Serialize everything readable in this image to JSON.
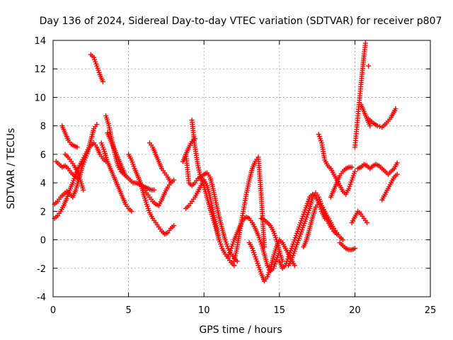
{
  "chart_data": {
    "type": "scatter",
    "title": "Day 136 of 2024, Sidereal Day-to-day VTEC variation (SDTVAR) for receiver p807",
    "xlabel": "GPS time / hours",
    "ylabel": "SDTVAR / TECUs",
    "xlim": [
      0,
      25
    ],
    "ylim": [
      -4,
      14
    ],
    "xticks": [
      0,
      5,
      10,
      15,
      20,
      25
    ],
    "yticks": [
      -4,
      -2,
      0,
      2,
      4,
      6,
      8,
      10,
      12,
      14
    ],
    "grid": true,
    "legend": "none",
    "marker": "plus",
    "color": "#ff0000",
    "series": [
      {
        "x": [
          0.1,
          0.3,
          0.5,
          0.7,
          0.9,
          1.1,
          1.3,
          1.5,
          1.7,
          1.9,
          2.1,
          2.3,
          2.5,
          2.7,
          2.9,
          3.1,
          3.3,
          3.5
        ],
        "y": [
          1.5,
          1.7,
          2.0,
          2.4,
          2.9,
          3.5,
          4.0,
          4.6,
          5.1,
          5.5,
          5.9,
          6.3,
          6.6,
          6.8,
          6.5,
          6.0,
          5.7,
          5.5
        ]
      },
      {
        "x": [
          0.1,
          0.3,
          0.5,
          0.7,
          0.9,
          1.1,
          1.3,
          1.5,
          1.7,
          1.9,
          2.1,
          2.3,
          2.5,
          2.7,
          2.9
        ],
        "y": [
          2.5,
          2.7,
          3.0,
          3.2,
          3.4,
          3.2,
          3.0,
          3.5,
          4.2,
          5.0,
          5.6,
          6.2,
          7.0,
          7.8,
          8.1
        ]
      },
      {
        "x": [
          0.2,
          0.4,
          0.6,
          0.8,
          1.0,
          1.2,
          1.4,
          1.6
        ],
        "y": [
          5.5,
          5.3,
          5.1,
          5.2,
          5.0,
          4.7,
          4.5,
          4.3
        ]
      },
      {
        "x": [
          0.6,
          0.8,
          1.0,
          1.2,
          1.4,
          1.6
        ],
        "y": [
          8.0,
          7.5,
          7.0,
          6.7,
          6.6,
          6.5
        ]
      },
      {
        "x": [
          0.8,
          1.0,
          1.2,
          1.4,
          1.6,
          1.8,
          2.0
        ],
        "y": [
          6.0,
          5.8,
          5.5,
          5.2,
          4.8,
          4.2,
          3.5
        ]
      },
      {
        "x": [
          2.5,
          2.7,
          2.9,
          3.1,
          3.3
        ],
        "y": [
          13.0,
          12.8,
          12.2,
          11.6,
          11.1
        ]
      },
      {
        "x": [
          3.5,
          3.7,
          3.9,
          4.1,
          4.3,
          4.5,
          4.7,
          4.9,
          5.1,
          5.3,
          5.5,
          5.7,
          5.9,
          6.1,
          6.3,
          6.5,
          6.7
        ],
        "y": [
          8.7,
          8.0,
          7.0,
          6.0,
          5.2,
          4.8,
          4.6,
          4.4,
          4.2,
          4.0,
          4.0,
          3.9,
          3.8,
          3.7,
          3.6,
          3.5,
          3.5
        ]
      },
      {
        "x": [
          3.2,
          3.4,
          3.6,
          3.8,
          4.0,
          4.2,
          4.4,
          4.6,
          4.8,
          5.0,
          5.2
        ],
        "y": [
          6.8,
          6.2,
          5.5,
          5.0,
          4.5,
          4.0,
          3.5,
          3.0,
          2.5,
          2.2,
          2.0
        ]
      },
      {
        "x": [
          3.6,
          3.8,
          4.0,
          4.2,
          4.4,
          4.6,
          4.8
        ],
        "y": [
          7.5,
          7.0,
          6.5,
          6.0,
          5.5,
          5.0,
          4.5
        ]
      },
      {
        "x": [
          5.0,
          5.2,
          5.4,
          5.6,
          5.8,
          6.0,
          6.2,
          6.4,
          6.6,
          6.8,
          7.0,
          7.2,
          7.4,
          7.6,
          7.8,
          8.0
        ],
        "y": [
          6.0,
          5.6,
          5.0,
          4.5,
          4.0,
          3.2,
          2.5,
          1.9,
          1.5,
          1.2,
          0.9,
          0.6,
          0.4,
          0.5,
          0.8,
          1.0
        ]
      },
      {
        "x": [
          6.0,
          6.2,
          6.4,
          6.6,
          6.8,
          7.0,
          7.2,
          7.4,
          7.6,
          7.8,
          8.0
        ],
        "y": [
          3.6,
          3.3,
          3.0,
          2.7,
          2.5,
          2.4,
          2.8,
          3.3,
          3.7,
          4.0,
          4.2
        ]
      },
      {
        "x": [
          6.4,
          6.6,
          6.8,
          7.0,
          7.2,
          7.4,
          7.6,
          7.8
        ],
        "y": [
          6.8,
          6.5,
          6.0,
          5.5,
          5.0,
          4.7,
          4.4,
          4.0
        ]
      },
      {
        "x": [
          8.8,
          9.0,
          9.2,
          9.4,
          9.6,
          9.8,
          10.0,
          10.2,
          10.4,
          10.6,
          10.8,
          11.0,
          11.2,
          11.4,
          11.6,
          11.8,
          12.0,
          12.2
        ],
        "y": [
          6.0,
          4.0,
          3.8,
          4.0,
          4.3,
          4.4,
          4.6,
          4.7,
          4.4,
          3.6,
          2.6,
          1.6,
          0.8,
          0.0,
          -0.6,
          -1.0,
          -1.3,
          -1.5
        ]
      },
      {
        "x": [
          8.8,
          9.0,
          9.2,
          9.4,
          9.6,
          9.8,
          10.0,
          10.2,
          10.4,
          10.6,
          10.8,
          11.0
        ],
        "y": [
          2.2,
          2.4,
          2.7,
          3.0,
          3.4,
          3.8,
          4.2,
          3.8,
          3.0,
          2.0,
          1.0,
          0.0
        ]
      },
      {
        "x": [
          8.6,
          8.8,
          9.0,
          9.2,
          9.4
        ],
        "y": [
          5.5,
          6.0,
          6.5,
          6.9,
          7.1
        ]
      },
      {
        "x": [
          9.2,
          9.4,
          9.6,
          9.8,
          10.0,
          10.2,
          10.4,
          10.6,
          10.8,
          11.0,
          11.2,
          11.4,
          11.6,
          11.8,
          12.0
        ],
        "y": [
          8.4,
          6.5,
          5.2,
          4.3,
          3.8,
          3.0,
          2.2,
          1.5,
          0.8,
          0.0,
          -0.6,
          -1.0,
          -1.3,
          -1.6,
          -1.8
        ]
      },
      {
        "x": [
          11.6,
          11.8,
          12.0,
          12.2,
          12.4,
          12.6,
          12.8,
          13.0,
          13.2,
          13.4,
          13.6,
          13.8,
          14.0,
          14.2,
          14.4,
          14.6,
          14.8,
          15.0
        ],
        "y": [
          -1.2,
          -0.6,
          0.0,
          0.5,
          1.0,
          1.4,
          1.6,
          1.5,
          1.2,
          0.8,
          0.3,
          -0.3,
          -1.0,
          -1.8,
          -2.2,
          -2.0,
          -1.4,
          -0.8
        ]
      },
      {
        "x": [
          12.0,
          12.2,
          12.4,
          12.6,
          12.8,
          13.0,
          13.2,
          13.4,
          13.6,
          13.8,
          14.0
        ],
        "y": [
          -1.5,
          -0.5,
          0.8,
          2.0,
          3.2,
          4.2,
          5.0,
          5.5,
          5.8,
          3.0,
          -0.5
        ]
      },
      {
        "x": [
          13.0,
          13.2,
          13.4,
          13.6,
          13.8,
          14.0,
          14.2,
          14.4,
          14.6,
          14.8,
          15.0,
          15.2,
          15.4,
          15.6,
          15.8,
          16.0
        ],
        "y": [
          -0.2,
          -0.6,
          -1.2,
          -1.8,
          -2.4,
          -2.9,
          -2.6,
          -2.0,
          -1.2,
          -0.5,
          0.0,
          -0.2,
          -0.6,
          -1.0,
          -1.4,
          -1.8
        ]
      },
      {
        "x": [
          13.8,
          14.0,
          14.2,
          14.4,
          14.6,
          14.8,
          15.0,
          15.2
        ],
        "y": [
          1.5,
          1.4,
          1.2,
          1.0,
          0.6,
          0.0,
          -0.8,
          -1.5
        ]
      },
      {
        "x": [
          15.0,
          15.2,
          15.4,
          15.6,
          15.8,
          16.0,
          16.2,
          16.4,
          16.6,
          16.8,
          17.0,
          17.2,
          17.4,
          17.6,
          17.8,
          18.0
        ],
        "y": [
          -1.5,
          -2.0,
          -1.8,
          -1.2,
          -0.6,
          0.0,
          0.6,
          1.2,
          1.8,
          2.4,
          3.0,
          3.2,
          3.0,
          2.6,
          2.0,
          1.5
        ]
      },
      {
        "x": [
          15.6,
          15.8,
          16.0,
          16.2,
          16.4,
          16.6,
          16.8,
          17.0,
          17.2,
          17.4,
          17.6,
          17.8,
          18.0,
          18.2,
          18.4,
          18.6,
          18.8
        ],
        "y": [
          -1.8,
          -1.4,
          -0.8,
          -0.2,
          0.4,
          1.0,
          1.6,
          2.2,
          3.0,
          3.3,
          3.0,
          2.4,
          1.8,
          1.3,
          0.9,
          0.6,
          0.4
        ]
      },
      {
        "x": [
          16.6,
          16.8,
          17.0,
          17.2,
          17.4,
          17.6,
          17.8,
          18.0,
          18.2,
          18.4,
          18.6,
          18.8,
          19.0,
          19.2
        ],
        "y": [
          -0.5,
          0.0,
          0.8,
          1.6,
          2.3,
          2.6,
          2.4,
          2.0,
          1.6,
          1.2,
          0.8,
          0.5,
          0.2,
          0.0
        ]
      },
      {
        "x": [
          17.6,
          17.8,
          18.0,
          18.2,
          18.4,
          18.6,
          18.8,
          19.0,
          19.2,
          19.4,
          19.6,
          19.8,
          20.0
        ],
        "y": [
          7.4,
          6.8,
          5.6,
          5.2,
          5.0,
          4.6,
          4.2,
          3.8,
          3.4,
          3.2,
          3.6,
          4.2,
          4.8
        ]
      },
      {
        "x": [
          18.4,
          18.6,
          18.8,
          19.0,
          19.2,
          19.4,
          19.6,
          19.8
        ],
        "y": [
          3.0,
          3.5,
          4.0,
          4.5,
          4.8,
          5.0,
          5.1,
          5.1
        ]
      },
      {
        "x": [
          19.0,
          19.2,
          19.4,
          19.6,
          19.8,
          20.0
        ],
        "y": [
          -0.2,
          -0.4,
          -0.6,
          -0.7,
          -0.7,
          -0.6
        ]
      },
      {
        "x": [
          19.8,
          20.0,
          20.2,
          20.4,
          20.6,
          20.8
        ],
        "y": [
          1.2,
          1.6,
          2.0,
          1.8,
          1.5,
          1.2
        ]
      },
      {
        "x": [
          20.0,
          20.1,
          20.2,
          20.3,
          20.4,
          20.5,
          20.6,
          20.7
        ],
        "y": [
          6.5,
          7.6,
          8.7,
          9.8,
          10.9,
          11.9,
          12.9,
          13.8
        ]
      },
      {
        "x": [
          20.2,
          20.4,
          20.6,
          20.8,
          21.0,
          21.2,
          21.4,
          21.6,
          21.8,
          22.0,
          22.2,
          22.4,
          22.6,
          22.8
        ],
        "y": [
          5.0,
          5.1,
          5.3,
          5.2,
          5.0,
          5.2,
          5.3,
          5.2,
          5.0,
          4.8,
          4.6,
          4.8,
          5.0,
          5.4
        ]
      },
      {
        "x": [
          20.9,
          21.2,
          21.5,
          21.8,
          22.1,
          22.4,
          22.7
        ],
        "y": [
          8.5,
          8.2,
          8.0,
          7.9,
          8.2,
          8.6,
          9.2
        ]
      },
      {
        "x": [
          21.8,
          22.0,
          22.2,
          22.4,
          22.6,
          22.8
        ],
        "y": [
          2.8,
          3.2,
          3.6,
          4.0,
          4.4,
          4.6
        ]
      },
      {
        "x": [
          20.4,
          20.6,
          20.8,
          21.0
        ],
        "y": [
          9.5,
          9.0,
          8.5,
          8.0
        ]
      },
      {
        "x": [
          20.9
        ],
        "y": [
          12.2
        ]
      }
    ]
  }
}
